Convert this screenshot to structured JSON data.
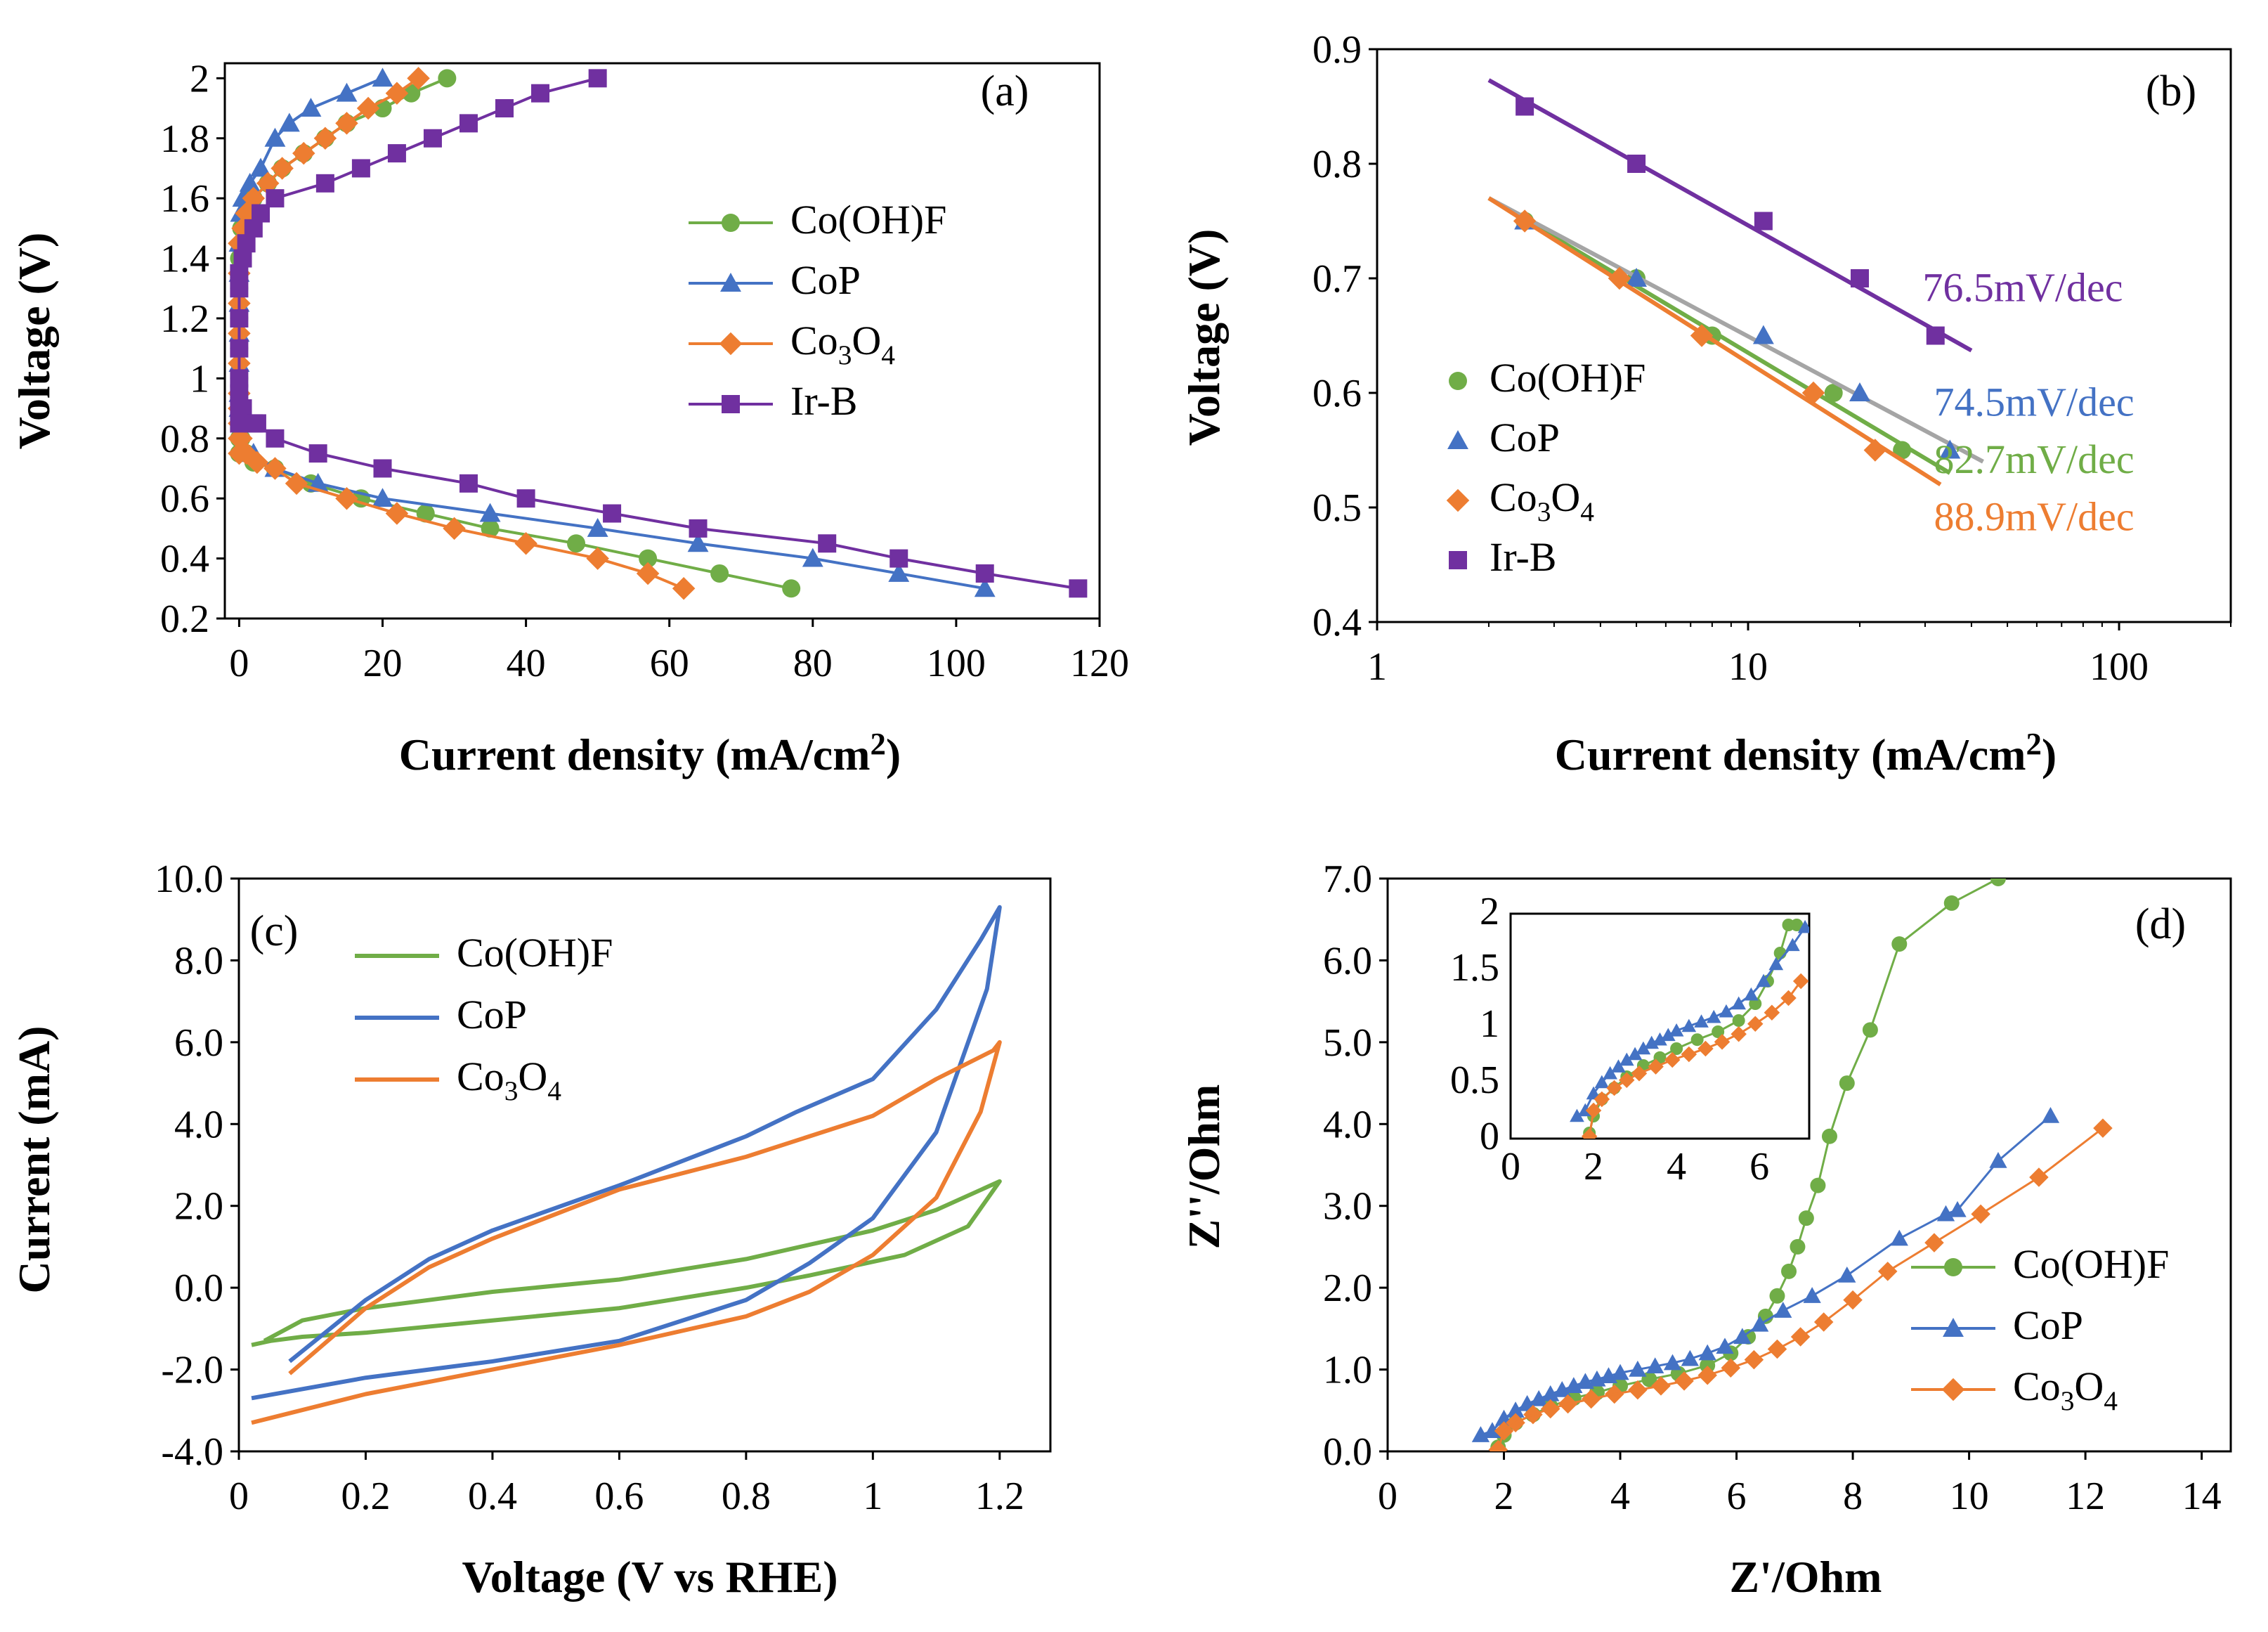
{
  "figure": {
    "colors": {
      "Co(OH)F": "#70ad47",
      "CoP": "#4472c4",
      "Co3O4": "#ed7d31",
      "Ir-B": "#7030a0",
      "fit_gray": "#a5a5a5"
    }
  },
  "chart_data": [
    {
      "id": "a",
      "type": "scatter",
      "tag": "(a)",
      "xlabel": "Current density (mA/cm2)",
      "ylabel": "Voltage (V)",
      "xlim": [
        -2,
        120
      ],
      "ylim": [
        0.2,
        2.05
      ],
      "xticks": [
        "0",
        "20",
        "40",
        "60",
        "80",
        "100",
        "120"
      ],
      "yticks": [
        "0.2",
        "0.4",
        "0.6",
        "0.8",
        "1",
        "1.2",
        "1.4",
        "1.6",
        "1.8",
        "2"
      ],
      "legend_position": "center-right",
      "series": [
        {
          "name": "Co(OH)F",
          "label": "Co(OH)F",
          "marker": "circle",
          "line": true,
          "x": [
            29,
            24,
            20,
            15,
            12,
            9,
            6,
            4,
            2,
            1,
            0.3,
            0,
            0,
            0,
            0,
            0,
            0,
            0,
            0,
            0,
            0,
            0.3,
            1,
            2,
            5,
            10,
            17,
            26,
            35,
            47,
            57,
            67,
            77
          ],
          "y": [
            2.0,
            1.95,
            1.9,
            1.85,
            1.8,
            1.75,
            1.7,
            1.65,
            1.6,
            1.55,
            1.5,
            1.4,
            1.3,
            1.2,
            1.1,
            1.0,
            0.9,
            0.85,
            0.8,
            0.75,
            0.75,
            0.8,
            0.75,
            0.72,
            0.7,
            0.65,
            0.6,
            0.55,
            0.5,
            0.45,
            0.4,
            0.35,
            0.3
          ]
        },
        {
          "name": "CoP",
          "label": "CoP",
          "marker": "triangle",
          "line": true,
          "x": [
            20,
            15,
            10,
            7,
            5,
            3,
            1.5,
            0.5,
            0.2,
            0,
            0,
            0,
            0,
            0,
            0,
            0,
            0.2,
            1,
            2,
            5,
            11,
            20,
            35,
            50,
            64,
            80,
            92,
            104
          ],
          "y": [
            2.0,
            1.95,
            1.9,
            1.85,
            1.8,
            1.7,
            1.65,
            1.6,
            1.55,
            1.45,
            1.35,
            1.25,
            1.15,
            1.05,
            0.95,
            0.9,
            0.85,
            0.75,
            0.75,
            0.7,
            0.65,
            0.6,
            0.55,
            0.5,
            0.45,
            0.4,
            0.35,
            0.3
          ]
        },
        {
          "name": "Co3O4",
          "label": "Co3O4",
          "marker": "diamond",
          "line": true,
          "x": [
            25,
            22,
            18,
            15,
            12,
            9,
            6,
            4,
            2,
            1,
            0.5,
            0,
            0,
            0,
            0,
            0,
            0,
            0,
            0,
            0,
            0,
            0.3,
            1,
            2.5,
            5,
            8,
            15,
            22,
            30,
            40,
            50,
            57,
            62
          ],
          "y": [
            2.0,
            1.95,
            1.9,
            1.85,
            1.8,
            1.75,
            1.7,
            1.65,
            1.6,
            1.55,
            1.5,
            1.45,
            1.35,
            1.25,
            1.15,
            1.05,
            0.95,
            0.9,
            0.85,
            0.8,
            0.75,
            0.8,
            0.75,
            0.72,
            0.7,
            0.65,
            0.6,
            0.55,
            0.5,
            0.45,
            0.4,
            0.35,
            0.3
          ]
        },
        {
          "name": "Ir-B",
          "label": "Ir-B",
          "marker": "square",
          "line": true,
          "x": [
            50,
            42,
            37,
            32,
            27,
            22,
            17,
            12,
            5,
            3,
            2,
            1,
            0.5,
            0,
            0,
            0,
            0,
            0,
            0,
            0,
            0,
            0.5,
            2,
            2.5,
            5,
            11,
            20,
            32,
            40,
            52,
            64,
            82,
            92,
            104,
            117
          ],
          "y": [
            2.0,
            1.95,
            1.9,
            1.85,
            1.8,
            1.75,
            1.7,
            1.65,
            1.6,
            1.55,
            1.5,
            1.45,
            1.4,
            1.35,
            1.3,
            1.2,
            1.1,
            1.0,
            0.95,
            0.9,
            0.85,
            0.9,
            0.85,
            0.85,
            0.8,
            0.75,
            0.7,
            0.65,
            0.6,
            0.55,
            0.5,
            0.45,
            0.4,
            0.35,
            0.3
          ]
        }
      ]
    },
    {
      "id": "b",
      "type": "scatter",
      "tag": "(b)",
      "xscale": "log",
      "xlabel": "Current density (mA/cm2)",
      "ylabel": "Voltage (V)",
      "xlim": [
        1,
        200
      ],
      "ylim": [
        0.4,
        0.9
      ],
      "xticks": [
        {
          "v": 1,
          "label": "1"
        },
        {
          "v": 10,
          "label": "10"
        },
        {
          "v": 100,
          "label": "100"
        }
      ],
      "yticks": [
        "0.4",
        "0.5",
        "0.6",
        "0.7",
        "0.8",
        "0.9"
      ],
      "legend_position": "left-center",
      "series": [
        {
          "name": "Co(OH)F",
          "label": "Co(OH)F",
          "marker": "circle",
          "x": [
            2.5,
            5,
            8,
            17,
            26
          ],
          "y": [
            0.75,
            0.7,
            0.65,
            0.6,
            0.55
          ],
          "fit_x": [
            2,
            35
          ],
          "fit_y": [
            0.77,
            0.53
          ]
        },
        {
          "name": "CoP",
          "label": "CoP",
          "marker": "triangle",
          "x": [
            2.5,
            5,
            11,
            20,
            35
          ],
          "y": [
            0.75,
            0.7,
            0.65,
            0.6,
            0.55
          ],
          "fit_x": [
            2,
            43
          ],
          "fit_y": [
            0.77,
            0.54
          ]
        },
        {
          "name": "Co3O4",
          "label": "Co3O4",
          "marker": "diamond",
          "x": [
            2.5,
            4.5,
            7.5,
            15,
            22
          ],
          "y": [
            0.75,
            0.7,
            0.65,
            0.6,
            0.55
          ],
          "fit_x": [
            2,
            33
          ],
          "fit_y": [
            0.77,
            0.52
          ]
        },
        {
          "name": "Ir-B",
          "label": "Ir-B",
          "marker": "square",
          "x": [
            2.5,
            5,
            11,
            20,
            32
          ],
          "y": [
            0.85,
            0.8,
            0.75,
            0.7,
            0.65
          ],
          "fit_x": [
            2,
            40
          ],
          "fit_y": [
            0.873,
            0.637
          ]
        }
      ],
      "annotations": [
        {
          "text": "76.5mV/dec",
          "series": "Ir-B",
          "x": 55,
          "y": 0.68
        },
        {
          "text": "74.5mV/dec",
          "series": "CoP",
          "x": 59,
          "y": 0.58
        },
        {
          "text": "82.7mV/dec",
          "series": "Co(OH)F",
          "x": 59,
          "y": 0.53
        },
        {
          "text": "88.9mV/dec",
          "series": "Co3O4",
          "x": 59,
          "y": 0.48
        }
      ]
    },
    {
      "id": "c",
      "type": "line",
      "tag": "(c)",
      "xlabel": "Voltage (V vs RHE)",
      "ylabel": "Current (mA)",
      "xlim": [
        0,
        1.28
      ],
      "ylim": [
        -4.0,
        10.0
      ],
      "xticks": [
        {
          "v": 0,
          "label": "0"
        },
        {
          "v": 0.2,
          "label": "0.2"
        },
        {
          "v": 0.4,
          "label": "0.4"
        },
        {
          "v": 0.6,
          "label": "0.6"
        },
        {
          "v": 0.8,
          "label": "0.8"
        },
        {
          "v": 1.0,
          "label": "1"
        },
        {
          "v": 1.2,
          "label": "1.2"
        }
      ],
      "yticks": [
        {
          "v": -4,
          "label": "-4.0"
        },
        {
          "v": -2,
          "label": "-2.0"
        },
        {
          "v": 0,
          "label": "0.0"
        },
        {
          "v": 2,
          "label": "2.0"
        },
        {
          "v": 4,
          "label": "4.0"
        },
        {
          "v": 6,
          "label": "6.0"
        },
        {
          "v": 8,
          "label": "8.0"
        },
        {
          "v": 10,
          "label": "10.0"
        }
      ],
      "legend_position": "top-left",
      "series": [
        {
          "name": "Co(OH)F",
          "label": "Co(OH)F",
          "x": [
            0.04,
            0.1,
            0.2,
            0.4,
            0.6,
            0.8,
            1.0,
            1.1,
            1.2,
            1.15,
            1.05,
            0.9,
            0.8,
            0.6,
            0.4,
            0.2,
            0.1,
            0.05,
            0.02
          ],
          "y": [
            -1.3,
            -0.8,
            -0.5,
            -0.1,
            0.2,
            0.7,
            1.4,
            1.9,
            2.6,
            1.5,
            0.8,
            0.3,
            0.0,
            -0.5,
            -0.8,
            -1.1,
            -1.2,
            -1.3,
            -1.4
          ]
        },
        {
          "name": "CoP",
          "label": "CoP",
          "x": [
            0.08,
            0.2,
            0.3,
            0.4,
            0.6,
            0.8,
            0.88,
            1.0,
            1.1,
            1.17,
            1.2,
            1.18,
            1.1,
            1.0,
            0.9,
            0.8,
            0.6,
            0.4,
            0.2,
            0.02
          ],
          "y": [
            -1.8,
            -0.3,
            0.7,
            1.4,
            2.5,
            3.7,
            4.3,
            5.1,
            6.8,
            8.5,
            9.3,
            7.3,
            3.8,
            1.7,
            0.6,
            -0.3,
            -1.3,
            -1.8,
            -2.2,
            -2.7
          ]
        },
        {
          "name": "Co3O4",
          "label": "Co3O4",
          "x": [
            0.08,
            0.2,
            0.3,
            0.4,
            0.6,
            0.8,
            1.0,
            1.1,
            1.19,
            1.2,
            1.17,
            1.1,
            1.0,
            0.9,
            0.8,
            0.6,
            0.4,
            0.2,
            0.02
          ],
          "y": [
            -2.1,
            -0.5,
            0.5,
            1.2,
            2.4,
            3.2,
            4.2,
            5.1,
            5.8,
            6.0,
            4.3,
            2.2,
            0.8,
            -0.1,
            -0.7,
            -1.4,
            -2.0,
            -2.6,
            -3.3
          ]
        }
      ]
    },
    {
      "id": "d",
      "type": "scatter",
      "tag": "(d)",
      "xlabel": "Z'/Ohm",
      "ylabel": "Z''/Ohm",
      "xlim": [
        0,
        14.5
      ],
      "ylim": [
        0.0,
        7.0
      ],
      "xticks": [
        "0",
        "2",
        "4",
        "6",
        "8",
        "10",
        "12",
        "14"
      ],
      "yticks": [
        {
          "v": 0,
          "label": "0.0"
        },
        {
          "v": 1,
          "label": "1.0"
        },
        {
          "v": 2,
          "label": "2.0"
        },
        {
          "v": 3,
          "label": "3.0"
        },
        {
          "v": 4,
          "label": "4.0"
        },
        {
          "v": 5,
          "label": "5.0"
        },
        {
          "v": 6,
          "label": "6.0"
        },
        {
          "v": 7,
          "label": "7.0"
        }
      ],
      "legend_position": "bottom-right",
      "series": [
        {
          "name": "Co(OH)F",
          "label": "Co(OH)F",
          "marker": "circle",
          "x": [
            1.9,
            2.0,
            2.2,
            2.5,
            2.8,
            3.2,
            3.6,
            4.0,
            4.5,
            5.0,
            5.5,
            5.9,
            6.2,
            6.5,
            6.7,
            6.9,
            7.05,
            7.2,
            7.4,
            7.6,
            7.9,
            8.3,
            8.8,
            9.7,
            10.5
          ],
          "y": [
            0.05,
            0.2,
            0.35,
            0.45,
            0.55,
            0.65,
            0.72,
            0.8,
            0.88,
            0.95,
            1.05,
            1.2,
            1.4,
            1.65,
            1.9,
            2.2,
            2.5,
            2.85,
            3.25,
            3.85,
            4.5,
            5.15,
            6.2,
            6.7,
            7.0
          ]
        },
        {
          "name": "CoP",
          "label": "CoP",
          "marker": "triangle",
          "x": [
            1.6,
            1.8,
            2.0,
            2.2,
            2.4,
            2.6,
            2.8,
            3.0,
            3.2,
            3.4,
            3.6,
            3.8,
            4.0,
            4.3,
            4.6,
            4.9,
            5.2,
            5.5,
            5.8,
            6.1,
            6.4,
            6.8,
            7.3,
            7.9,
            8.8,
            9.6,
            9.8,
            10.5,
            11.4
          ],
          "y": [
            0.2,
            0.25,
            0.4,
            0.5,
            0.58,
            0.64,
            0.7,
            0.75,
            0.8,
            0.85,
            0.88,
            0.92,
            0.96,
            1.0,
            1.04,
            1.08,
            1.13,
            1.2,
            1.28,
            1.4,
            1.55,
            1.72,
            1.9,
            2.15,
            2.6,
            2.9,
            2.95,
            3.55,
            4.1
          ]
        },
        {
          "name": "Co3O4",
          "label": "Co3O4",
          "marker": "diamond",
          "x": [
            1.9,
            2.0,
            2.2,
            2.5,
            2.8,
            3.1,
            3.5,
            3.9,
            4.3,
            4.7,
            5.1,
            5.5,
            5.9,
            6.3,
            6.7,
            7.1,
            7.5,
            8.0,
            8.6,
            9.4,
            10.2,
            11.2,
            12.3
          ],
          "y": [
            0.02,
            0.25,
            0.35,
            0.45,
            0.52,
            0.58,
            0.64,
            0.7,
            0.75,
            0.8,
            0.86,
            0.93,
            1.02,
            1.12,
            1.25,
            1.4,
            1.58,
            1.85,
            2.2,
            2.55,
            2.9,
            3.35,
            3.95
          ]
        }
      ],
      "inset": {
        "xlim": [
          0,
          7.2
        ],
        "ylim": [
          0,
          2.0
        ],
        "xticks": [
          "0",
          "2",
          "4",
          "6"
        ],
        "yticks": [
          {
            "v": 0,
            "label": "0"
          },
          {
            "v": 0.5,
            "label": "0.5"
          },
          {
            "v": 1,
            "label": "1"
          },
          {
            "v": 1.5,
            "label": "1.5"
          },
          {
            "v": 2,
            "label": "2"
          }
        ],
        "series": [
          {
            "name": "Co(OH)F",
            "marker": "circle",
            "x": [
              1.9,
              2.0,
              2.2,
              2.5,
              2.8,
              3.2,
              3.6,
              4.0,
              4.5,
              5.0,
              5.5,
              5.9,
              6.2,
              6.5,
              6.7,
              6.9
            ],
            "y": [
              0.05,
              0.2,
              0.35,
              0.45,
              0.55,
              0.65,
              0.72,
              0.8,
              0.88,
              0.95,
              1.05,
              1.2,
              1.4,
              1.65,
              1.9,
              1.9
            ]
          },
          {
            "name": "CoP",
            "marker": "triangle",
            "x": [
              1.6,
              1.8,
              2.0,
              2.2,
              2.4,
              2.6,
              2.8,
              3.0,
              3.2,
              3.4,
              3.6,
              3.8,
              4.0,
              4.3,
              4.6,
              4.9,
              5.2,
              5.5,
              5.8,
              6.1,
              6.4,
              6.8,
              7.1
            ],
            "y": [
              0.2,
              0.25,
              0.4,
              0.5,
              0.58,
              0.64,
              0.7,
              0.75,
              0.8,
              0.85,
              0.88,
              0.92,
              0.96,
              1.0,
              1.04,
              1.08,
              1.13,
              1.2,
              1.28,
              1.4,
              1.55,
              1.72,
              1.88
            ]
          },
          {
            "name": "Co3O4",
            "marker": "diamond",
            "x": [
              1.9,
              2.0,
              2.2,
              2.5,
              2.8,
              3.1,
              3.5,
              3.9,
              4.3,
              4.7,
              5.1,
              5.5,
              5.9,
              6.3,
              6.7,
              7.0
            ],
            "y": [
              0.02,
              0.25,
              0.35,
              0.45,
              0.52,
              0.58,
              0.64,
              0.7,
              0.75,
              0.8,
              0.86,
              0.93,
              1.02,
              1.12,
              1.25,
              1.4
            ]
          }
        ]
      }
    }
  ]
}
